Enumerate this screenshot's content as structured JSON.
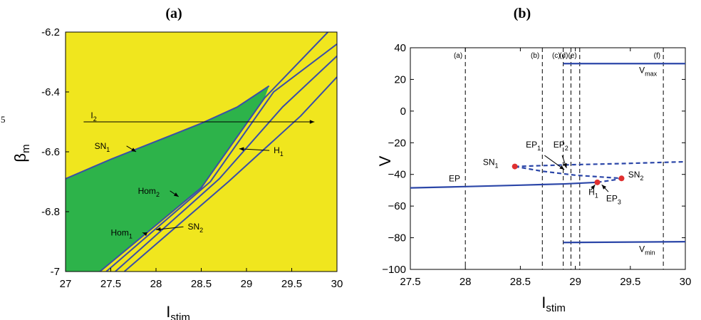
{
  "page_marker": "5",
  "chart_data": [
    {
      "type": "region",
      "panel_label": "(a)",
      "xlabel": "I",
      "xlabel_sub": "stim",
      "ylabel": "β",
      "ylabel_sub": "m",
      "xlim": [
        27,
        30
      ],
      "ylim": [
        -7,
        -6.2
      ],
      "x_ticks": [
        "27",
        "27.5",
        "28",
        "28.5",
        "29",
        "29.5",
        "30"
      ],
      "y_ticks": [
        "-7",
        "-6.8",
        "-6.6",
        "-6.4",
        "-6.2"
      ],
      "colors": {
        "green": "#2db34a",
        "yellow": "#f0e61e",
        "curve": "#3a4ea8"
      },
      "sn1_curve": [
        [
          27,
          -6.69
        ],
        [
          27.5,
          -6.625
        ],
        [
          28,
          -6.565
        ],
        [
          28.5,
          -6.505
        ],
        [
          28.9,
          -6.45
        ],
        [
          29.25,
          -6.38
        ]
      ],
      "boundary_curves": [
        {
          "label": "Hom",
          "sub": "1",
          "points": [
            [
              27.38,
              -7.0
            ],
            [
              28.5,
              -6.72
            ],
            [
              29.2,
              -6.42
            ],
            [
              29.9,
              -6.2
            ]
          ]
        },
        {
          "label": "Hom",
          "sub": "2",
          "points": [
            [
              27.45,
              -7.0
            ],
            [
              28.6,
              -6.7
            ],
            [
              29.3,
              -6.4
            ],
            [
              30,
              -6.24
            ]
          ]
        },
        {
          "label": "H",
          "sub": "1",
          "points": [
            [
              27.55,
              -7.0
            ],
            [
              28.7,
              -6.69
            ],
            [
              29.4,
              -6.45
            ],
            [
              30,
              -6.28
            ]
          ]
        },
        {
          "label": "SN",
          "sub": "2",
          "points": [
            [
              27.65,
              -7.0
            ],
            [
              28.8,
              -6.7
            ],
            [
              29.6,
              -6.48
            ],
            [
              30,
              -6.35
            ]
          ]
        }
      ],
      "arrow_I2": {
        "label": "I",
        "sub": "2",
        "y": -6.5,
        "x_from": 27.2,
        "x_to": 29.75
      },
      "annotations": [
        {
          "label": "SN",
          "sub": "1",
          "x": 27.32,
          "y": -6.59,
          "arrow_to": [
            27.78,
            -6.6
          ]
        },
        {
          "label": "H",
          "sub": "1",
          "x": 29.3,
          "y": -6.605,
          "arrow_to": [
            28.92,
            -6.59
          ]
        },
        {
          "label": "Hom",
          "sub": "2",
          "x": 27.8,
          "y": -6.74,
          "arrow_to": [
            28.25,
            -6.75
          ]
        },
        {
          "label": "Hom",
          "sub": "1",
          "x": 27.5,
          "y": -6.88,
          "arrow_to": [
            27.85,
            -6.87
          ]
        },
        {
          "label": "SN",
          "sub": "2",
          "x": 28.35,
          "y": -6.86,
          "arrow_to": [
            28.0,
            -6.86
          ]
        }
      ]
    },
    {
      "type": "line",
      "panel_label": "(b)",
      "xlabel": "I",
      "xlabel_sub": "stim",
      "ylabel": "V",
      "xlim": [
        27.5,
        30
      ],
      "ylim": [
        -100,
        40
      ],
      "x_ticks": [
        "27.5",
        "28",
        "28.5",
        "29",
        "29.5",
        "30"
      ],
      "y_ticks": [
        "−100",
        "−80",
        "−60",
        "−40",
        "−20",
        "0",
        "20",
        "40"
      ],
      "colors": {
        "line": "#2b46a8",
        "point": "#e03030"
      },
      "vlines": [
        {
          "label": "(a)",
          "x": 28.0
        },
        {
          "label": "(b)",
          "x": 28.7
        },
        {
          "label": "(c)",
          "x": 28.89
        },
        {
          "label": "(d)",
          "x": 28.96
        },
        {
          "label": "(e)",
          "x": 29.04
        },
        {
          "label": "(f)",
          "x": 29.8
        }
      ],
      "series": [
        {
          "name": "EP",
          "style": "solid",
          "points": [
            [
              27.5,
              -48.5
            ],
            [
              28.0,
              -47.7
            ],
            [
              28.5,
              -46.8
            ],
            [
              28.9,
              -46.0
            ],
            [
              29.2,
              -45.0
            ]
          ]
        },
        {
          "name": "EP1",
          "style": "dashed",
          "points": [
            [
              28.45,
              -35
            ],
            [
              28.9,
              -34.0
            ],
            [
              29.4,
              -33.2
            ],
            [
              30.0,
              -32.0
            ]
          ]
        },
        {
          "name": "EP2",
          "style": "dashed",
          "points": [
            [
              28.45,
              -35
            ],
            [
              28.7,
              -38.0
            ],
            [
              29.0,
              -40.5
            ],
            [
              29.42,
              -42.5
            ]
          ]
        },
        {
          "name": "EP3",
          "style": "dashed",
          "points": [
            [
              29.2,
              -45.0
            ],
            [
              29.35,
              -43.5
            ],
            [
              29.42,
              -42.5
            ]
          ]
        },
        {
          "name": "Vmax",
          "style": "solid",
          "points": [
            [
              28.89,
              30
            ],
            [
              30.0,
              30
            ]
          ]
        },
        {
          "name": "Vmin",
          "style": "solid",
          "points": [
            [
              28.89,
              -83
            ],
            [
              30.0,
              -82.5
            ]
          ]
        }
      ],
      "points": [
        {
          "label": "SN",
          "sub": "1",
          "x": 28.45,
          "y": -35
        },
        {
          "label": "SN",
          "sub": "2",
          "x": 29.42,
          "y": -42.5
        },
        {
          "label": "H",
          "sub": "1",
          "x": 29.2,
          "y": -45.0
        }
      ],
      "annotations": [
        {
          "label": "EP",
          "sub": "",
          "x": 27.85,
          "y": -44.5
        },
        {
          "label": "EP",
          "sub": "1",
          "x": 28.55,
          "y": -23
        },
        {
          "label": "EP",
          "sub": "2",
          "x": 28.8,
          "y": -23
        },
        {
          "label": "EP",
          "sub": "3",
          "x": 29.28,
          "y": -57
        },
        {
          "label": "H",
          "sub": "1",
          "x": 29.12,
          "y": -53
        },
        {
          "label": "SN",
          "sub": "1",
          "x": 28.3,
          "y": -34
        },
        {
          "label": "SN",
          "sub": "2",
          "x": 29.48,
          "y": -42
        },
        {
          "label": "V",
          "sub": "max",
          "x": 29.58,
          "y": 24
        },
        {
          "label": "V",
          "sub": "min",
          "x": 29.58,
          "y": -89
        }
      ]
    }
  ]
}
